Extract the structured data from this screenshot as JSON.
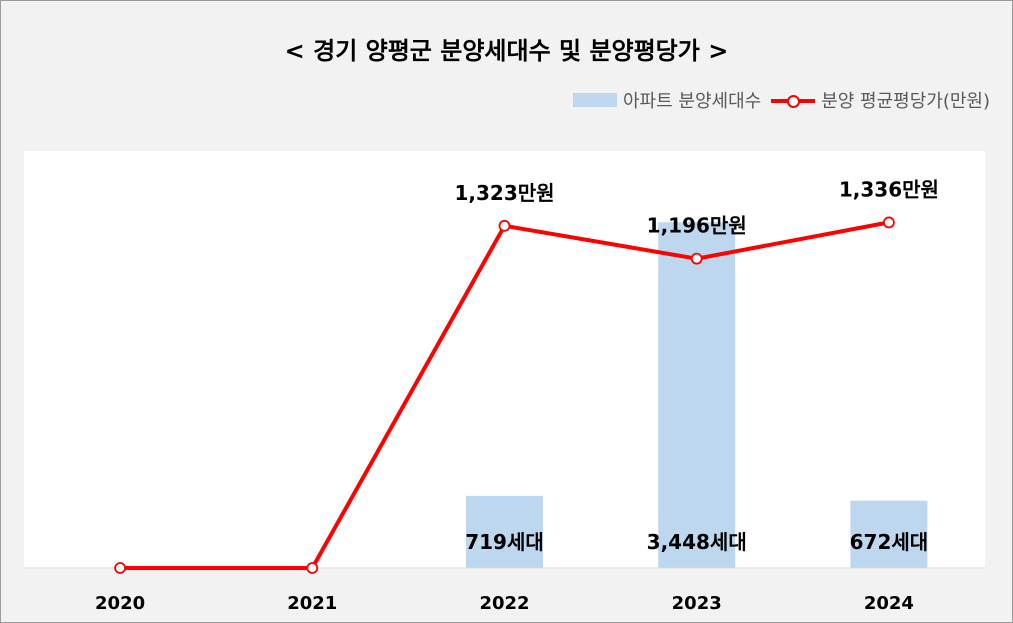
{
  "title": "< 경기 양평군 분양세대수 및 분양평당가 >",
  "legend": {
    "bar_label": "아파트 분양세대수",
    "line_label": "분양 평균평당가(만원)"
  },
  "colors": {
    "bar": "#bdd7ee",
    "line": "#ff0000",
    "background": "#f2f2f2"
  },
  "chart_data": {
    "type": "bar",
    "title": "< 경기 양평군 분양세대수 및 분양평당가 >",
    "categories": [
      "2020",
      "2021",
      "2022",
      "2023",
      "2024"
    ],
    "series": [
      {
        "name": "아파트 분양세대수",
        "type": "bar",
        "values": [
          0,
          0,
          719,
          3448,
          672
        ],
        "labels": [
          "",
          "",
          "719세대",
          "3,448세대",
          "672세대"
        ]
      },
      {
        "name": "분양 평균평당가(만원)",
        "type": "line",
        "values": [
          0,
          0,
          1323,
          1196,
          1336
        ],
        "labels": [
          "",
          "",
          "1,323만원",
          "1,196만원",
          "1,336만원"
        ]
      }
    ],
    "legend_position": "top-right",
    "grid": false
  }
}
